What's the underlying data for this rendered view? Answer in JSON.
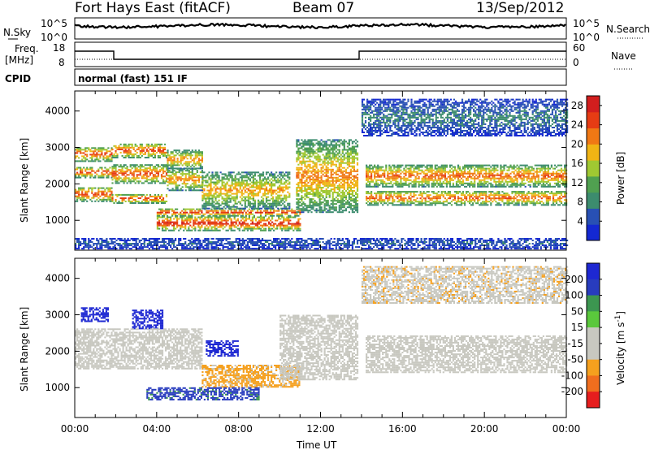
{
  "header": {
    "site": "Fort Hays East (fitACF)",
    "beam": "Beam 07",
    "date": "13/Sep/2012"
  },
  "panels": {
    "nsky": {
      "label": "N.Sky",
      "right_label": "N.Search",
      "left_ticks": [
        "10^5",
        "10^0"
      ],
      "right_ticks": [
        "10^5",
        "10^0"
      ]
    },
    "freq": {
      "label_top": "Freq.",
      "label_bottom": "[MHz]",
      "right_label": "Nave",
      "left_ticks": [
        "18",
        "8"
      ],
      "right_ticks": [
        "60",
        "0"
      ]
    },
    "cpid": {
      "label": "CPID",
      "mode": "normal (fast) 151 IF"
    }
  },
  "colors": {
    "power": [
      "#1428d2",
      "#2850b4",
      "#3c8c6e",
      "#50a050",
      "#a0c832",
      "#f0b414",
      "#f07814",
      "#e63c14",
      "#d21e1e"
    ],
    "velocity": [
      "#e61e1e",
      "#f06e1e",
      "#f5a01e",
      "#c8c8c0",
      "#c8c8c0",
      "#5ac83c",
      "#3c9650",
      "#283cbe",
      "#1e28d2"
    ],
    "ground": "#c8c8c0"
  },
  "chart_data": [
    {
      "type": "heatmap",
      "name": "power",
      "ylabel": "Slant Range [km]",
      "xlabel": "",
      "x_ticks": [
        "00:00",
        "04:00",
        "08:00",
        "12:00",
        "16:00",
        "20:00",
        "00:00"
      ],
      "x_range_hours": [
        0,
        24
      ],
      "ylim": [
        180,
        4550
      ],
      "y_ticks": [
        1000,
        2000,
        3000,
        4000
      ],
      "colorbar": {
        "label": "Power [dB]",
        "ticks": [
          4,
          8,
          12,
          16,
          20,
          24,
          28
        ],
        "range": [
          0,
          30
        ]
      },
      "echo_bands": [
        {
          "start_h": 0.0,
          "end_h": 1.8,
          "ranges_km": [
            [
              1500,
              1900
            ],
            [
              2150,
              2450
            ],
            [
              2600,
              3000
            ]
          ],
          "peak_db": 26
        },
        {
          "start_h": 1.8,
          "end_h": 4.5,
          "ranges_km": [
            [
              1450,
              1700
            ],
            [
              2000,
              2500
            ],
            [
              2700,
              3100
            ]
          ],
          "peak_db": 26
        },
        {
          "start_h": 4.5,
          "end_h": 6.2,
          "ranges_km": [
            [
              1800,
              2400
            ],
            [
              2400,
              2900
            ]
          ],
          "peak_db": 22
        },
        {
          "start_h": 4.0,
          "end_h": 11.0,
          "ranges_km": [
            [
              700,
              1100
            ],
            [
              1100,
              1300
            ]
          ],
          "peak_db": 28
        },
        {
          "start_h": 6.2,
          "end_h": 10.5,
          "ranges_km": [
            [
              1300,
              2300
            ]
          ],
          "peak_db": 20
        },
        {
          "start_h": 10.8,
          "end_h": 13.8,
          "ranges_km": [
            [
              1200,
              3200
            ]
          ],
          "peak_db": 22
        },
        {
          "start_h": 14.2,
          "end_h": 24.0,
          "ranges_km": [
            [
              1400,
              1800
            ],
            [
              1900,
              2500
            ]
          ],
          "peak_db": 24
        },
        {
          "start_h": 14.0,
          "end_h": 24.0,
          "ranges_km": [
            [
              3300,
              4300
            ]
          ],
          "peak_db": 8
        },
        {
          "start_h": 0.0,
          "end_h": 24.0,
          "ranges_km": [
            [
              200,
              500
            ]
          ],
          "peak_db": 6
        }
      ]
    },
    {
      "type": "heatmap",
      "name": "velocity",
      "ylabel": "Slant Range [km]",
      "xlabel": "Time UT",
      "x_ticks": [
        "00:00",
        "04:00",
        "08:00",
        "12:00",
        "16:00",
        "20:00",
        "00:00"
      ],
      "x_range_hours": [
        0,
        24
      ],
      "ylim": [
        180,
        4550
      ],
      "y_ticks": [
        1000,
        2000,
        3000,
        4000
      ],
      "colorbar": {
        "label_main": "Velocity [m s",
        "label_sup": "-1",
        "label_end": "]",
        "ticks": [
          "200",
          "100",
          "50",
          "15",
          "-15",
          "-50",
          "-100",
          "-200"
        ]
      },
      "echo_bands": [
        {
          "start_h": 0.3,
          "end_h": 1.6,
          "ranges_km": [
            [
              2800,
              3200
            ]
          ],
          "velocity": 250
        },
        {
          "start_h": 2.8,
          "end_h": 4.3,
          "ranges_km": [
            [
              2600,
              3100
            ]
          ],
          "velocity": 250
        },
        {
          "start_h": 0.0,
          "end_h": 6.2,
          "ranges_km": [
            [
              1500,
              2600
            ]
          ],
          "velocity": 0
        },
        {
          "start_h": 6.4,
          "end_h": 8.0,
          "ranges_km": [
            [
              1850,
              2300
            ]
          ],
          "velocity": 250
        },
        {
          "start_h": 6.2,
          "end_h": 11.0,
          "ranges_km": [
            [
              1000,
              1600
            ]
          ],
          "velocity": -60
        },
        {
          "start_h": 3.5,
          "end_h": 9.0,
          "ranges_km": [
            [
              650,
              1000
            ]
          ],
          "velocity": 60
        },
        {
          "start_h": 10.0,
          "end_h": 13.8,
          "ranges_km": [
            [
              1200,
              3000
            ]
          ],
          "velocity": 0
        },
        {
          "start_h": 14.2,
          "end_h": 24.0,
          "ranges_km": [
            [
              1400,
              2400
            ]
          ],
          "velocity": 0
        },
        {
          "start_h": 14.0,
          "end_h": 24.0,
          "ranges_km": [
            [
              3300,
              4300
            ]
          ],
          "velocity": -40
        }
      ]
    }
  ]
}
